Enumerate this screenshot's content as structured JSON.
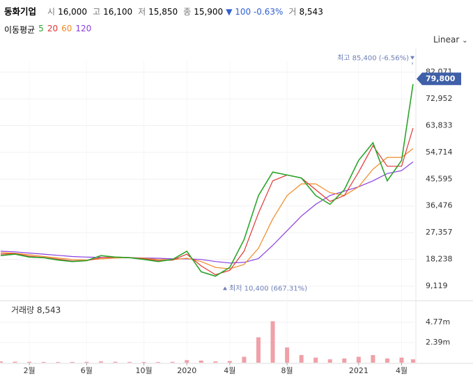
{
  "header": {
    "name": "동화기업",
    "open_label": "시",
    "open": "16,000",
    "high_label": "고",
    "high": "16,100",
    "low_label": "저",
    "low": "15,850",
    "close_label": "종",
    "close": "15,900",
    "change": "▼ 100 -0.63%",
    "volume_label": "거",
    "volume": "8,543"
  },
  "chart_data": [
    {
      "type": "line",
      "legend_title": "이동평균",
      "scale": "Linear",
      "grid": true,
      "x": [
        -1,
        0,
        1,
        2,
        3,
        4,
        5,
        6,
        7,
        8,
        9,
        10,
        11,
        12,
        13,
        14,
        15,
        16,
        17,
        18,
        19,
        20,
        21,
        22,
        23,
        24,
        25,
        26,
        27,
        27.8
      ],
      "series": [
        {
          "name": "5",
          "color": "#2aa52a",
          "values": [
            19500,
            20000,
            19000,
            18800,
            18000,
            17500,
            17800,
            19500,
            19000,
            18800,
            18200,
            17500,
            18200,
            21000,
            14000,
            12500,
            15500,
            25000,
            40000,
            48000,
            47000,
            46000,
            40000,
            37000,
            42000,
            52000,
            58000,
            45000,
            52000,
            78000
          ]
        },
        {
          "name": "20",
          "color": "#e03535",
          "values": [
            20000,
            20200,
            19300,
            18900,
            18300,
            17700,
            17800,
            18800,
            19000,
            18900,
            18400,
            17800,
            18000,
            20000,
            16000,
            13000,
            14500,
            21000,
            34000,
            45000,
            47000,
            46000,
            42000,
            38000,
            40000,
            48000,
            57000,
            50000,
            50000,
            63000
          ]
        },
        {
          "name": "60",
          "color": "#f08a24",
          "values": [
            20500,
            20300,
            19800,
            19200,
            18700,
            18200,
            18000,
            18400,
            18700,
            18800,
            18600,
            18200,
            18100,
            18600,
            17500,
            15500,
            15000,
            16500,
            22000,
            32000,
            40000,
            44000,
            44000,
            41000,
            40000,
            43000,
            49000,
            53000,
            53000,
            56000
          ]
        },
        {
          "name": "120",
          "color": "#8a3ee0",
          "values": [
            21000,
            20800,
            20400,
            20000,
            19600,
            19200,
            19000,
            18900,
            18900,
            18800,
            18700,
            18600,
            18400,
            18400,
            18200,
            17500,
            17000,
            17200,
            18500,
            23000,
            28000,
            33000,
            37000,
            40000,
            41500,
            43000,
            45000,
            47500,
            48500,
            51500
          ]
        }
      ],
      "xlim": [
        -1.05,
        27.9
      ],
      "xticks": [
        {
          "value": 1,
          "label": "2월"
        },
        {
          "value": 5,
          "label": "6월"
        },
        {
          "value": 9,
          "label": "10월"
        },
        {
          "value": 12,
          "label": "2020"
        },
        {
          "value": 15,
          "label": "4월"
        },
        {
          "value": 19,
          "label": "8월"
        },
        {
          "value": 24,
          "label": "2021"
        },
        {
          "value": 27,
          "label": "4월"
        }
      ],
      "ylim": [
        4600,
        85800
      ],
      "yticks": [
        {
          "value": 9119,
          "label": "9,119"
        },
        {
          "value": 18238,
          "label": "18,238"
        },
        {
          "value": 27357,
          "label": "27,357"
        },
        {
          "value": 36476,
          "label": "36,476"
        },
        {
          "value": 45595,
          "label": "45,595"
        },
        {
          "value": 54714,
          "label": "54,714"
        },
        {
          "value": 63833,
          "label": "63,833"
        },
        {
          "value": 72952,
          "label": "72,952"
        },
        {
          "value": 82071,
          "label": "82,071"
        }
      ],
      "max": {
        "value": 85400,
        "label": "최고 85,400 (-6.56%)"
      },
      "min": {
        "value": 10400,
        "label": "최저 10,400 (667.31%)"
      },
      "current": {
        "value": 79800,
        "label": "79,800"
      }
    },
    {
      "type": "bar",
      "title": "거래량 8,543",
      "color": "#f0a0a8",
      "x": [
        -1,
        0,
        1,
        2,
        3,
        4,
        5,
        6,
        7,
        8,
        9,
        10,
        11,
        12,
        13,
        14,
        15,
        16,
        17,
        18,
        19,
        20,
        21,
        22,
        23,
        24,
        25,
        26,
        27,
        27.8
      ],
      "values": [
        150000,
        120000,
        100000,
        90000,
        80000,
        90000,
        100000,
        150000,
        110000,
        90000,
        80000,
        80000,
        100000,
        300000,
        250000,
        150000,
        200000,
        700000,
        3000000,
        4900000,
        1800000,
        900000,
        600000,
        400000,
        500000,
        700000,
        900000,
        500000,
        600000,
        400000
      ],
      "ylim": [
        0,
        6830000
      ],
      "yticks": [
        {
          "value": 2390000,
          "label": "2.39m"
        },
        {
          "value": 4770000,
          "label": "4.77m"
        }
      ]
    }
  ]
}
